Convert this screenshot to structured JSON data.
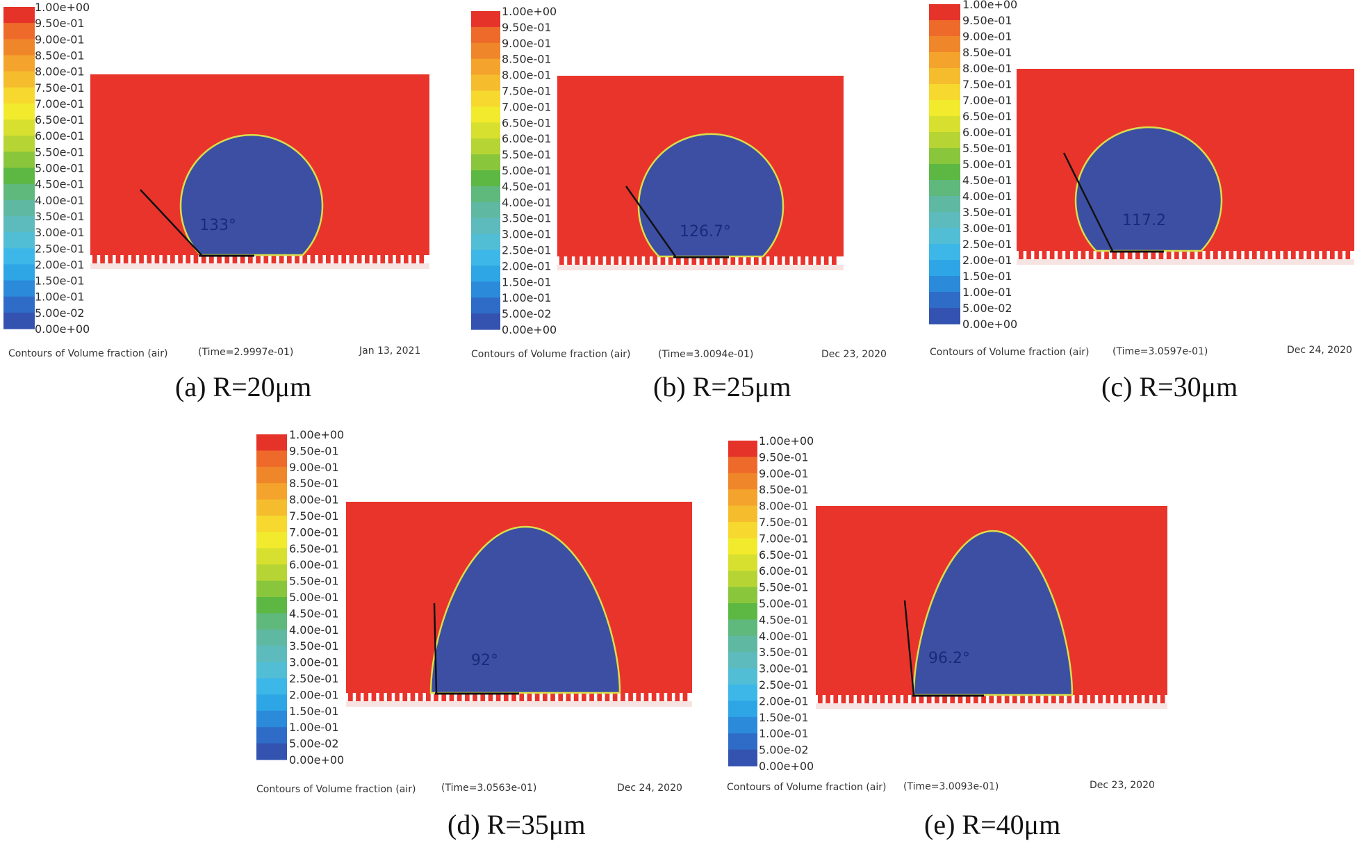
{
  "chart_data": [
    {
      "type": "contour",
      "caption": "(a) R=20μm",
      "angle_label": "133°",
      "contact_angle_deg": 133,
      "footer": {
        "title": "Contours of Volume fraction (air)",
        "time": "(Time=2.9997e-01)",
        "date": "Jan 13, 2021"
      }
    },
    {
      "type": "contour",
      "caption": "(b) R=25μm",
      "angle_label": "126.7°",
      "contact_angle_deg": 126.7,
      "footer": {
        "title": "Contours of Volume fraction (air)",
        "time": "(Time=3.0094e-01)",
        "date": "Dec 23, 2020"
      }
    },
    {
      "type": "contour",
      "caption": "(c) R=30μm",
      "angle_label": "117.2",
      "contact_angle_deg": 117.2,
      "footer": {
        "title": "Contours of Volume fraction (air)",
        "time": "(Time=3.0597e-01)",
        "date": "Dec 24, 2020"
      }
    },
    {
      "type": "contour",
      "caption": "(d) R=35μm",
      "angle_label": "92°",
      "contact_angle_deg": 92,
      "footer": {
        "title": "Contours of Volume fraction (air)",
        "time": "(Time=3.0563e-01)",
        "date": "Dec 24, 2020"
      }
    },
    {
      "type": "contour",
      "caption": "(e) R=40μm",
      "angle_label": "96.2°",
      "contact_angle_deg": 96.2,
      "footer": {
        "title": "Contours of Volume fraction (air)",
        "time": "(Time=3.0093e-01)",
        "date": "Dec 23, 2020"
      }
    }
  ],
  "legend": {
    "labels": [
      "1.00e+00",
      "9.50e-01",
      "9.00e-01",
      "8.50e-01",
      "8.00e-01",
      "7.50e-01",
      "7.00e-01",
      "6.50e-01",
      "6.00e-01",
      "5.50e-01",
      "5.00e-01",
      "4.50e-01",
      "4.00e-01",
      "3.50e-01",
      "3.00e-01",
      "2.50e-01",
      "2.00e-01",
      "1.50e-01",
      "1.00e-01",
      "5.00e-02",
      "0.00e+00"
    ],
    "colors": [
      "#e5332a",
      "#ee6a2a",
      "#f0862a",
      "#f4a42c",
      "#f5bd2e",
      "#f6d82e",
      "#f2ea2c",
      "#d8e02f",
      "#b6d534",
      "#8ac63c",
      "#5cb842",
      "#5fb87c",
      "#5fb9a2",
      "#5dbbbd",
      "#52bed6",
      "#3db7e8",
      "#2ea6e6",
      "#2b8ad9",
      "#2f6cc8",
      "#3453b0"
    ]
  },
  "colors": {
    "liquid": "#e9342c",
    "air": "#3d4fa3",
    "interface": "#d9de4a",
    "tangent": "#111111",
    "groove": "#ffffff"
  }
}
